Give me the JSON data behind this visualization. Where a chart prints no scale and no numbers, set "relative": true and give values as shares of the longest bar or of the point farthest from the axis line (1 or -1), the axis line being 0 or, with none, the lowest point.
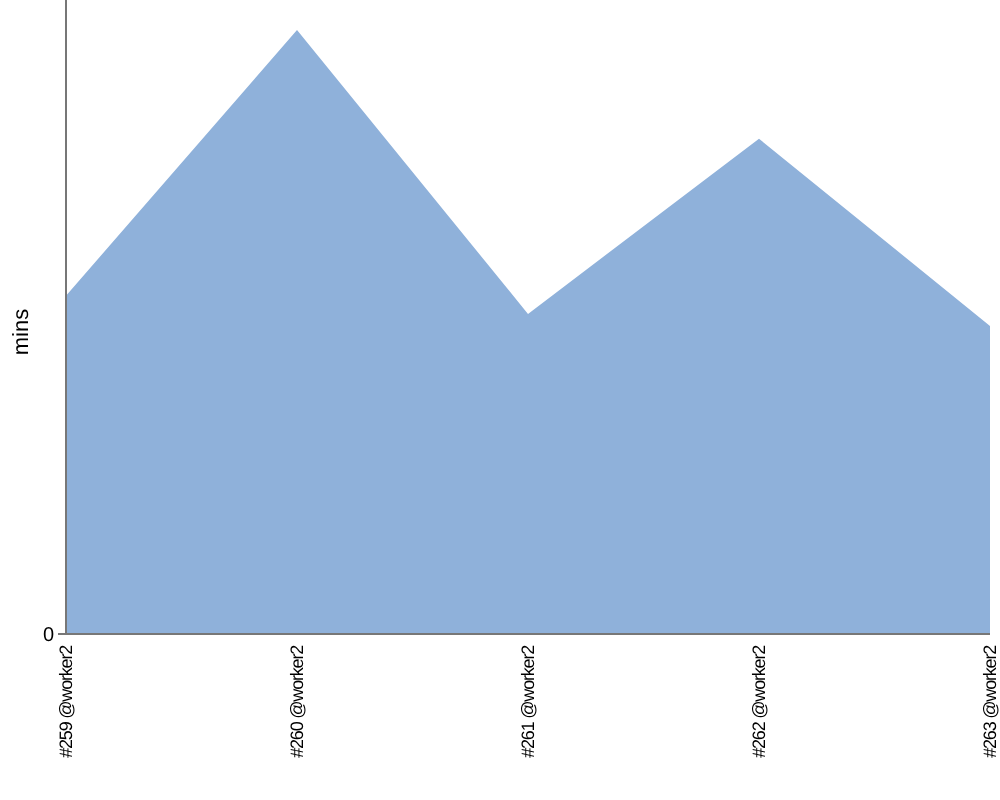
{
  "chart_data": {
    "type": "area",
    "ylabel": "mins",
    "relative": true,
    "categories": [
      "#259 @worker2",
      "#260 @worker2",
      "#261 @worker2",
      "#262 @worker2",
      "#263 @worker2"
    ],
    "series": [
      {
        "color": "#8fb1da",
        "values": [
          0.56,
          1,
          0.53,
          0.82,
          0.51
        ]
      }
    ],
    "annotations": [
      "0"
    ]
  }
}
